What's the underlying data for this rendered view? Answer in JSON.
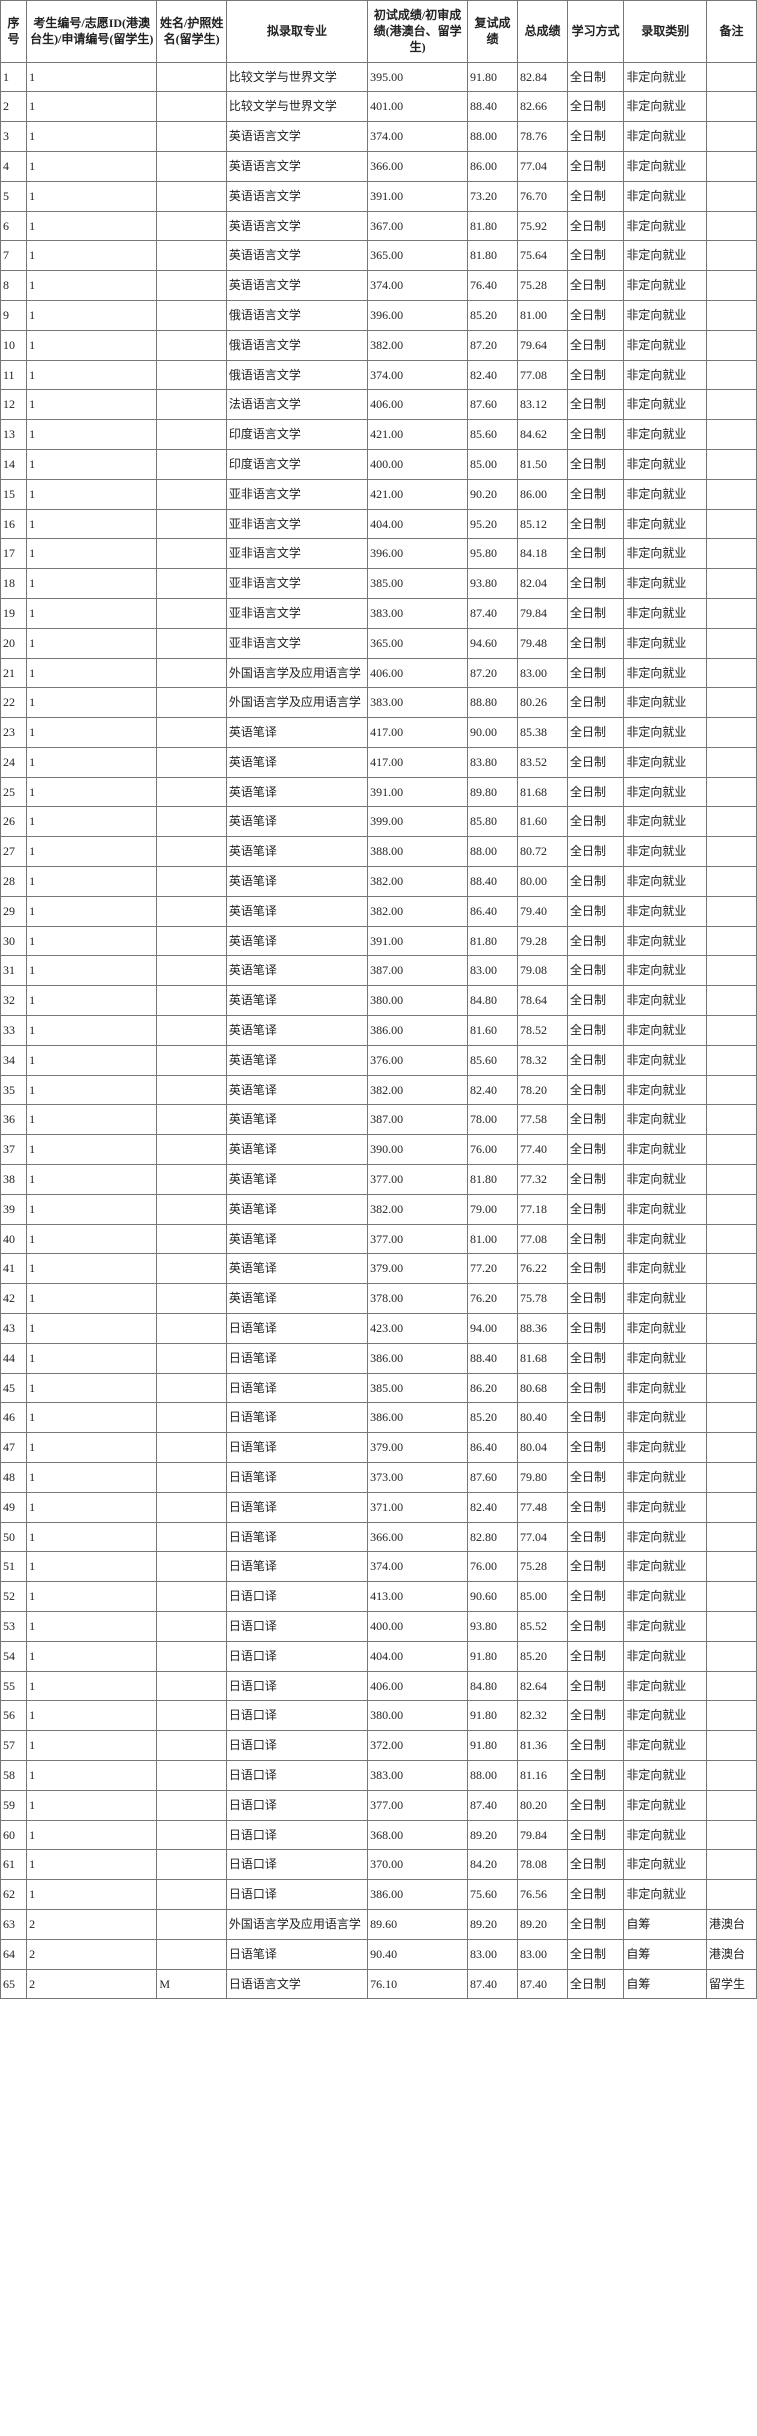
{
  "headers": [
    "序号",
    "考生编号/志愿ID(港澳台生)/申请编号(留学生)",
    "姓名/护照姓名(留学生)",
    "拟录取专业",
    "初试成绩/初审成绩(港澳台、留学生)",
    "复试成绩",
    "总成绩",
    "学习方式",
    "录取类别",
    "备注"
  ],
  "rows": [
    {
      "n": "1",
      "id": "1",
      "name": "",
      "major": "比较文学与世界文学",
      "s1": "395.00",
      "s2": "91.80",
      "tot": "82.84",
      "mode": "全日制",
      "cat": "非定向就业",
      "note": ""
    },
    {
      "n": "2",
      "id": "1",
      "name": "",
      "major": "比较文学与世界文学",
      "s1": "401.00",
      "s2": "88.40",
      "tot": "82.66",
      "mode": "全日制",
      "cat": "非定向就业",
      "note": ""
    },
    {
      "n": "3",
      "id": "1",
      "name": "",
      "major": "英语语言文学",
      "s1": "374.00",
      "s2": "88.00",
      "tot": "78.76",
      "mode": "全日制",
      "cat": "非定向就业",
      "note": ""
    },
    {
      "n": "4",
      "id": "1",
      "name": "",
      "major": "英语语言文学",
      "s1": "366.00",
      "s2": "86.00",
      "tot": "77.04",
      "mode": "全日制",
      "cat": "非定向就业",
      "note": ""
    },
    {
      "n": "5",
      "id": "1",
      "name": "",
      "major": "英语语言文学",
      "s1": "391.00",
      "s2": "73.20",
      "tot": "76.70",
      "mode": "全日制",
      "cat": "非定向就业",
      "note": ""
    },
    {
      "n": "6",
      "id": "1",
      "name": "",
      "major": "英语语言文学",
      "s1": "367.00",
      "s2": "81.80",
      "tot": "75.92",
      "mode": "全日制",
      "cat": "非定向就业",
      "note": ""
    },
    {
      "n": "7",
      "id": "1",
      "name": "",
      "major": "英语语言文学",
      "s1": "365.00",
      "s2": "81.80",
      "tot": "75.64",
      "mode": "全日制",
      "cat": "非定向就业",
      "note": ""
    },
    {
      "n": "8",
      "id": "1",
      "name": "",
      "major": "英语语言文学",
      "s1": "374.00",
      "s2": "76.40",
      "tot": "75.28",
      "mode": "全日制",
      "cat": "非定向就业",
      "note": ""
    },
    {
      "n": "9",
      "id": "1",
      "name": "",
      "major": "俄语语言文学",
      "s1": "396.00",
      "s2": "85.20",
      "tot": "81.00",
      "mode": "全日制",
      "cat": "非定向就业",
      "note": ""
    },
    {
      "n": "10",
      "id": "1",
      "name": "",
      "major": "俄语语言文学",
      "s1": "382.00",
      "s2": "87.20",
      "tot": "79.64",
      "mode": "全日制",
      "cat": "非定向就业",
      "note": ""
    },
    {
      "n": "11",
      "id": "1",
      "name": "",
      "major": "俄语语言文学",
      "s1": "374.00",
      "s2": "82.40",
      "tot": "77.08",
      "mode": "全日制",
      "cat": "非定向就业",
      "note": ""
    },
    {
      "n": "12",
      "id": "1",
      "name": "",
      "major": "法语语言文学",
      "s1": "406.00",
      "s2": "87.60",
      "tot": "83.12",
      "mode": "全日制",
      "cat": "非定向就业",
      "note": ""
    },
    {
      "n": "13",
      "id": "1",
      "name": "",
      "major": "印度语言文学",
      "s1": "421.00",
      "s2": "85.60",
      "tot": "84.62",
      "mode": "全日制",
      "cat": "非定向就业",
      "note": ""
    },
    {
      "n": "14",
      "id": "1",
      "name": "",
      "major": "印度语言文学",
      "s1": "400.00",
      "s2": "85.00",
      "tot": "81.50",
      "mode": "全日制",
      "cat": "非定向就业",
      "note": ""
    },
    {
      "n": "15",
      "id": "1",
      "name": "",
      "major": "亚非语言文学",
      "s1": "421.00",
      "s2": "90.20",
      "tot": "86.00",
      "mode": "全日制",
      "cat": "非定向就业",
      "note": ""
    },
    {
      "n": "16",
      "id": "1",
      "name": "",
      "major": "亚非语言文学",
      "s1": "404.00",
      "s2": "95.20",
      "tot": "85.12",
      "mode": "全日制",
      "cat": "非定向就业",
      "note": ""
    },
    {
      "n": "17",
      "id": "1",
      "name": "",
      "major": "亚非语言文学",
      "s1": "396.00",
      "s2": "95.80",
      "tot": "84.18",
      "mode": "全日制",
      "cat": "非定向就业",
      "note": ""
    },
    {
      "n": "18",
      "id": "1",
      "name": "",
      "major": "亚非语言文学",
      "s1": "385.00",
      "s2": "93.80",
      "tot": "82.04",
      "mode": "全日制",
      "cat": "非定向就业",
      "note": ""
    },
    {
      "n": "19",
      "id": "1",
      "name": "",
      "major": "亚非语言文学",
      "s1": "383.00",
      "s2": "87.40",
      "tot": "79.84",
      "mode": "全日制",
      "cat": "非定向就业",
      "note": ""
    },
    {
      "n": "20",
      "id": "1",
      "name": "",
      "major": "亚非语言文学",
      "s1": "365.00",
      "s2": "94.60",
      "tot": "79.48",
      "mode": "全日制",
      "cat": "非定向就业",
      "note": ""
    },
    {
      "n": "21",
      "id": "1",
      "name": "",
      "major": "外国语言学及应用语言学",
      "s1": "406.00",
      "s2": "87.20",
      "tot": "83.00",
      "mode": "全日制",
      "cat": "非定向就业",
      "note": ""
    },
    {
      "n": "22",
      "id": "1",
      "name": "",
      "major": "外国语言学及应用语言学",
      "s1": "383.00",
      "s2": "88.80",
      "tot": "80.26",
      "mode": "全日制",
      "cat": "非定向就业",
      "note": ""
    },
    {
      "n": "23",
      "id": "1",
      "name": "",
      "major": "英语笔译",
      "s1": "417.00",
      "s2": "90.00",
      "tot": "85.38",
      "mode": "全日制",
      "cat": "非定向就业",
      "note": ""
    },
    {
      "n": "24",
      "id": "1",
      "name": "",
      "major": "英语笔译",
      "s1": "417.00",
      "s2": "83.80",
      "tot": "83.52",
      "mode": "全日制",
      "cat": "非定向就业",
      "note": ""
    },
    {
      "n": "25",
      "id": "1",
      "name": "",
      "major": "英语笔译",
      "s1": "391.00",
      "s2": "89.80",
      "tot": "81.68",
      "mode": "全日制",
      "cat": "非定向就业",
      "note": ""
    },
    {
      "n": "26",
      "id": "1",
      "name": "",
      "major": "英语笔译",
      "s1": "399.00",
      "s2": "85.80",
      "tot": "81.60",
      "mode": "全日制",
      "cat": "非定向就业",
      "note": ""
    },
    {
      "n": "27",
      "id": "1",
      "name": "",
      "major": "英语笔译",
      "s1": "388.00",
      "s2": "88.00",
      "tot": "80.72",
      "mode": "全日制",
      "cat": "非定向就业",
      "note": ""
    },
    {
      "n": "28",
      "id": "1",
      "name": "",
      "major": "英语笔译",
      "s1": "382.00",
      "s2": "88.40",
      "tot": "80.00",
      "mode": "全日制",
      "cat": "非定向就业",
      "note": ""
    },
    {
      "n": "29",
      "id": "1",
      "name": "",
      "major": "英语笔译",
      "s1": "382.00",
      "s2": "86.40",
      "tot": "79.40",
      "mode": "全日制",
      "cat": "非定向就业",
      "note": ""
    },
    {
      "n": "30",
      "id": "1",
      "name": "",
      "major": "英语笔译",
      "s1": "391.00",
      "s2": "81.80",
      "tot": "79.28",
      "mode": "全日制",
      "cat": "非定向就业",
      "note": ""
    },
    {
      "n": "31",
      "id": "1",
      "name": "",
      "major": "英语笔译",
      "s1": "387.00",
      "s2": "83.00",
      "tot": "79.08",
      "mode": "全日制",
      "cat": "非定向就业",
      "note": ""
    },
    {
      "n": "32",
      "id": "1",
      "name": "",
      "major": "英语笔译",
      "s1": "380.00",
      "s2": "84.80",
      "tot": "78.64",
      "mode": "全日制",
      "cat": "非定向就业",
      "note": ""
    },
    {
      "n": "33",
      "id": "1",
      "name": "",
      "major": "英语笔译",
      "s1": "386.00",
      "s2": "81.60",
      "tot": "78.52",
      "mode": "全日制",
      "cat": "非定向就业",
      "note": ""
    },
    {
      "n": "34",
      "id": "1",
      "name": "",
      "major": "英语笔译",
      "s1": "376.00",
      "s2": "85.60",
      "tot": "78.32",
      "mode": "全日制",
      "cat": "非定向就业",
      "note": ""
    },
    {
      "n": "35",
      "id": "1",
      "name": "",
      "major": "英语笔译",
      "s1": "382.00",
      "s2": "82.40",
      "tot": "78.20",
      "mode": "全日制",
      "cat": "非定向就业",
      "note": ""
    },
    {
      "n": "36",
      "id": "1",
      "name": "",
      "major": "英语笔译",
      "s1": "387.00",
      "s2": "78.00",
      "tot": "77.58",
      "mode": "全日制",
      "cat": "非定向就业",
      "note": ""
    },
    {
      "n": "37",
      "id": "1",
      "name": "",
      "major": "英语笔译",
      "s1": "390.00",
      "s2": "76.00",
      "tot": "77.40",
      "mode": "全日制",
      "cat": "非定向就业",
      "note": ""
    },
    {
      "n": "38",
      "id": "1",
      "name": "",
      "major": "英语笔译",
      "s1": "377.00",
      "s2": "81.80",
      "tot": "77.32",
      "mode": "全日制",
      "cat": "非定向就业",
      "note": ""
    },
    {
      "n": "39",
      "id": "1",
      "name": "",
      "major": "英语笔译",
      "s1": "382.00",
      "s2": "79.00",
      "tot": "77.18",
      "mode": "全日制",
      "cat": "非定向就业",
      "note": ""
    },
    {
      "n": "40",
      "id": "1",
      "name": "",
      "major": "英语笔译",
      "s1": "377.00",
      "s2": "81.00",
      "tot": "77.08",
      "mode": "全日制",
      "cat": "非定向就业",
      "note": ""
    },
    {
      "n": "41",
      "id": "1",
      "name": "",
      "major": "英语笔译",
      "s1": "379.00",
      "s2": "77.20",
      "tot": "76.22",
      "mode": "全日制",
      "cat": "非定向就业",
      "note": ""
    },
    {
      "n": "42",
      "id": "1",
      "name": "",
      "major": "英语笔译",
      "s1": "378.00",
      "s2": "76.20",
      "tot": "75.78",
      "mode": "全日制",
      "cat": "非定向就业",
      "note": ""
    },
    {
      "n": "43",
      "id": "1",
      "name": "",
      "major": "日语笔译",
      "s1": "423.00",
      "s2": "94.00",
      "tot": "88.36",
      "mode": "全日制",
      "cat": "非定向就业",
      "note": ""
    },
    {
      "n": "44",
      "id": "1",
      "name": "",
      "major": "日语笔译",
      "s1": "386.00",
      "s2": "88.40",
      "tot": "81.68",
      "mode": "全日制",
      "cat": "非定向就业",
      "note": ""
    },
    {
      "n": "45",
      "id": "1",
      "name": "",
      "major": "日语笔译",
      "s1": "385.00",
      "s2": "86.20",
      "tot": "80.68",
      "mode": "全日制",
      "cat": "非定向就业",
      "note": ""
    },
    {
      "n": "46",
      "id": "1",
      "name": "",
      "major": "日语笔译",
      "s1": "386.00",
      "s2": "85.20",
      "tot": "80.40",
      "mode": "全日制",
      "cat": "非定向就业",
      "note": ""
    },
    {
      "n": "47",
      "id": "1",
      "name": "",
      "major": "日语笔译",
      "s1": "379.00",
      "s2": "86.40",
      "tot": "80.04",
      "mode": "全日制",
      "cat": "非定向就业",
      "note": ""
    },
    {
      "n": "48",
      "id": "1",
      "name": "",
      "major": "日语笔译",
      "s1": "373.00",
      "s2": "87.60",
      "tot": "79.80",
      "mode": "全日制",
      "cat": "非定向就业",
      "note": ""
    },
    {
      "n": "49",
      "id": "1",
      "name": "",
      "major": "日语笔译",
      "s1": "371.00",
      "s2": "82.40",
      "tot": "77.48",
      "mode": "全日制",
      "cat": "非定向就业",
      "note": ""
    },
    {
      "n": "50",
      "id": "1",
      "name": "",
      "major": "日语笔译",
      "s1": "366.00",
      "s2": "82.80",
      "tot": "77.04",
      "mode": "全日制",
      "cat": "非定向就业",
      "note": ""
    },
    {
      "n": "51",
      "id": "1",
      "name": "",
      "major": "日语笔译",
      "s1": "374.00",
      "s2": "76.00",
      "tot": "75.28",
      "mode": "全日制",
      "cat": "非定向就业",
      "note": ""
    },
    {
      "n": "52",
      "id": "1",
      "name": "",
      "major": "日语口译",
      "s1": "413.00",
      "s2": "90.60",
      "tot": "85.00",
      "mode": "全日制",
      "cat": "非定向就业",
      "note": ""
    },
    {
      "n": "53",
      "id": "1",
      "name": "",
      "major": "日语口译",
      "s1": "400.00",
      "s2": "93.80",
      "tot": "85.52",
      "mode": "全日制",
      "cat": "非定向就业",
      "note": ""
    },
    {
      "n": "54",
      "id": "1",
      "name": "",
      "major": "日语口译",
      "s1": "404.00",
      "s2": "91.80",
      "tot": "85.20",
      "mode": "全日制",
      "cat": "非定向就业",
      "note": ""
    },
    {
      "n": "55",
      "id": "1",
      "name": "",
      "major": "日语口译",
      "s1": "406.00",
      "s2": "84.80",
      "tot": "82.64",
      "mode": "全日制",
      "cat": "非定向就业",
      "note": ""
    },
    {
      "n": "56",
      "id": "1",
      "name": "",
      "major": "日语口译",
      "s1": "380.00",
      "s2": "91.80",
      "tot": "82.32",
      "mode": "全日制",
      "cat": "非定向就业",
      "note": ""
    },
    {
      "n": "57",
      "id": "1",
      "name": "",
      "major": "日语口译",
      "s1": "372.00",
      "s2": "91.80",
      "tot": "81.36",
      "mode": "全日制",
      "cat": "非定向就业",
      "note": ""
    },
    {
      "n": "58",
      "id": "1",
      "name": "",
      "major": "日语口译",
      "s1": "383.00",
      "s2": "88.00",
      "tot": "81.16",
      "mode": "全日制",
      "cat": "非定向就业",
      "note": ""
    },
    {
      "n": "59",
      "id": "1",
      "name": "",
      "major": "日语口译",
      "s1": "377.00",
      "s2": "87.40",
      "tot": "80.20",
      "mode": "全日制",
      "cat": "非定向就业",
      "note": ""
    },
    {
      "n": "60",
      "id": "1",
      "name": "",
      "major": "日语口译",
      "s1": "368.00",
      "s2": "89.20",
      "tot": "79.84",
      "mode": "全日制",
      "cat": "非定向就业",
      "note": ""
    },
    {
      "n": "61",
      "id": "1",
      "name": "",
      "major": "日语口译",
      "s1": "370.00",
      "s2": "84.20",
      "tot": "78.08",
      "mode": "全日制",
      "cat": "非定向就业",
      "note": ""
    },
    {
      "n": "62",
      "id": "1",
      "name": "",
      "major": "日语口译",
      "s1": "386.00",
      "s2": "75.60",
      "tot": "76.56",
      "mode": "全日制",
      "cat": "非定向就业",
      "note": ""
    },
    {
      "n": "63",
      "id": "2",
      "name": "",
      "major": "外国语言学及应用语言学",
      "s1": "89.60",
      "s2": "89.20",
      "tot": "89.20",
      "mode": "全日制",
      "cat": "自筹",
      "note": "港澳台"
    },
    {
      "n": "64",
      "id": "2",
      "name": "",
      "major": "日语笔译",
      "s1": "90.40",
      "s2": "83.00",
      "tot": "83.00",
      "mode": "全日制",
      "cat": "自筹",
      "note": "港澳台"
    },
    {
      "n": "65",
      "id": "2",
      "name": "M",
      "major": "日语语言文学",
      "s1": "76.10",
      "s2": "87.40",
      "tot": "87.40",
      "mode": "全日制",
      "cat": "自筹",
      "note": "留学生"
    }
  ]
}
